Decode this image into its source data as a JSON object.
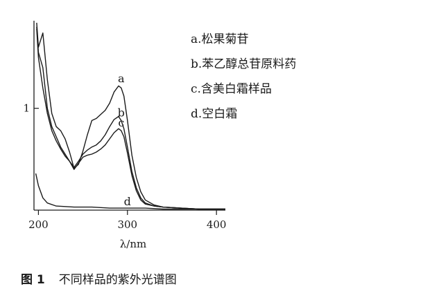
{
  "figure": {
    "caption_number": "图 1",
    "caption_text": "不同样品的紫外光谱图"
  },
  "chart_data": {
    "type": "line",
    "title": "",
    "xlabel": "λ/nm",
    "ylabel": "",
    "xlim": [
      195,
      410
    ],
    "ylim": [
      0,
      1.86
    ],
    "xticks": [
      200,
      300,
      400
    ],
    "xtick_labels": [
      "200",
      "300",
      "400"
    ],
    "yticks": [
      1
    ],
    "ytick_labels": [
      "1"
    ],
    "grid": false,
    "legend_position": "top-right",
    "legend": [
      {
        "key": "a",
        "text": "a.松果菊苷"
      },
      {
        "key": "b",
        "text": "b.苯乙醇总苷原料药"
      },
      {
        "key": "c",
        "text": "c.含美白霜样品"
      },
      {
        "key": "d",
        "text": "d.空白霜"
      }
    ],
    "series": [
      {
        "name": "a",
        "color": "#1a1a1a",
        "x": [
          198,
          200,
          205,
          210,
          215,
          220,
          225,
          230,
          235,
          240,
          245,
          250,
          255,
          260,
          265,
          270,
          275,
          280,
          285,
          290,
          293,
          296,
          300,
          305,
          310,
          315,
          320,
          330,
          340,
          360,
          380,
          400,
          410
        ],
        "y": [
          1.84,
          1.6,
          1.74,
          1.28,
          0.95,
          0.82,
          0.78,
          0.7,
          0.57,
          0.41,
          0.45,
          0.58,
          0.74,
          0.88,
          0.9,
          0.94,
          0.98,
          1.05,
          1.16,
          1.22,
          1.2,
          1.12,
          0.88,
          0.54,
          0.32,
          0.18,
          0.1,
          0.05,
          0.03,
          0.02,
          0.01,
          0.01,
          0.01
        ]
      },
      {
        "name": "b",
        "color": "#1a1a1a",
        "x": [
          198,
          200,
          205,
          210,
          215,
          220,
          225,
          230,
          235,
          240,
          245,
          250,
          255,
          260,
          265,
          270,
          275,
          280,
          285,
          290,
          293,
          296,
          300,
          305,
          310,
          315,
          320,
          330,
          340,
          360,
          380,
          400,
          410
        ],
        "y": [
          1.8,
          1.55,
          1.4,
          1.0,
          0.82,
          0.72,
          0.62,
          0.55,
          0.48,
          0.42,
          0.48,
          0.55,
          0.59,
          0.62,
          0.64,
          0.68,
          0.74,
          0.82,
          0.89,
          0.92,
          0.88,
          0.8,
          0.62,
          0.38,
          0.22,
          0.12,
          0.07,
          0.04,
          0.03,
          0.02,
          0.01,
          0.01,
          0.01
        ]
      },
      {
        "name": "c",
        "color": "#1a1a1a",
        "x": [
          198,
          200,
          205,
          210,
          215,
          220,
          225,
          230,
          235,
          240,
          245,
          250,
          255,
          260,
          265,
          270,
          275,
          280,
          285,
          290,
          293,
          296,
          300,
          305,
          310,
          315,
          320,
          330,
          340,
          360,
          380,
          400,
          410
        ],
        "y": [
          1.78,
          1.5,
          1.2,
          0.95,
          0.78,
          0.68,
          0.6,
          0.53,
          0.48,
          0.4,
          0.46,
          0.52,
          0.54,
          0.55,
          0.57,
          0.6,
          0.64,
          0.7,
          0.76,
          0.8,
          0.78,
          0.72,
          0.56,
          0.34,
          0.19,
          0.1,
          0.06,
          0.04,
          0.03,
          0.02,
          0.01,
          0.01,
          0.01
        ]
      },
      {
        "name": "d",
        "color": "#1a1a1a",
        "x": [
          197,
          200,
          205,
          210,
          220,
          240,
          260,
          280,
          300,
          320,
          340,
          360,
          380,
          400,
          410
        ],
        "y": [
          0.36,
          0.24,
          0.12,
          0.07,
          0.04,
          0.03,
          0.03,
          0.02,
          0.02,
          0.02,
          0.01,
          0.01,
          0.01,
          0.01,
          0.01
        ]
      }
    ]
  }
}
